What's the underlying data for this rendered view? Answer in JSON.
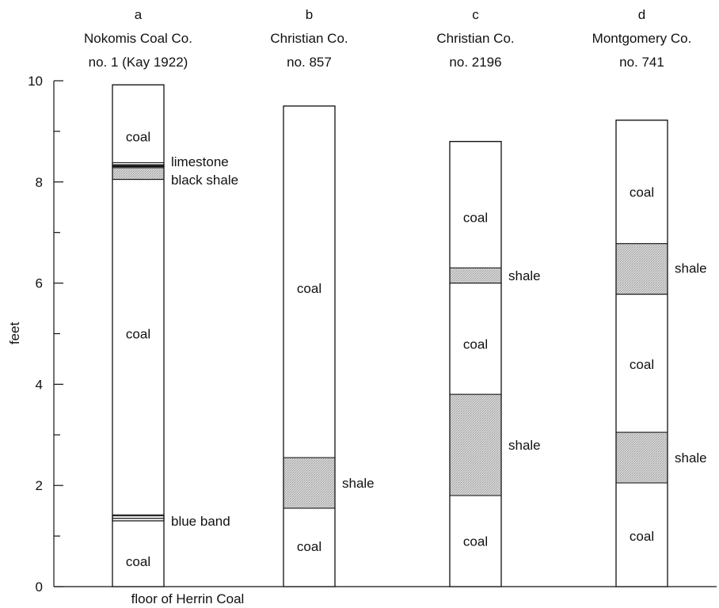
{
  "chart_data": {
    "type": "stratigraphic-columns",
    "ylabel": "feet",
    "ylim": [
      0,
      10
    ],
    "yticks": [
      0,
      2,
      4,
      6,
      8,
      10
    ],
    "x_annotation": "floor of Herrin Coal",
    "colors": {
      "coal": "#ffffff",
      "shale": "#d2d2d2",
      "line": "#111111"
    },
    "columns": [
      {
        "letter": "a",
        "title_line1": "Nokomis Coal Co.",
        "title_line2": "no. 1 (Kay 1922)",
        "top": 9.92,
        "layers": [
          {
            "kind": "coal",
            "bottom": 8.38,
            "top": 9.92
          },
          {
            "kind": "thin",
            "bottom": 8.3,
            "top": 8.34
          },
          {
            "kind": "shale",
            "bottom": 8.05,
            "top": 8.28
          },
          {
            "kind": "coal",
            "bottom": 1.42,
            "top": 8.05
          },
          {
            "kind": "thin",
            "bottom": 1.3,
            "top": 1.4
          },
          {
            "kind": "coal",
            "bottom": 0,
            "top": 1.3
          }
        ],
        "labels": [
          {
            "text": "coal",
            "y": 8.9,
            "side": "inside"
          },
          {
            "text": "limestone",
            "y": 8.4,
            "side": "right"
          },
          {
            "text": "black shale",
            "y": 8.04,
            "side": "right"
          },
          {
            "text": "coal",
            "y": 5.0,
            "side": "inside"
          },
          {
            "text": "blue band",
            "y": 1.3,
            "side": "right"
          },
          {
            "text": "coal",
            "y": 0.5,
            "side": "inside"
          }
        ]
      },
      {
        "letter": "b",
        "title_line1": "Christian Co.",
        "title_line2": "no. 857",
        "top": 9.5,
        "layers": [
          {
            "kind": "coal",
            "bottom": 2.55,
            "top": 9.5
          },
          {
            "kind": "shale",
            "bottom": 1.55,
            "top": 2.55
          },
          {
            "kind": "coal",
            "bottom": 0,
            "top": 1.55
          }
        ],
        "labels": [
          {
            "text": "coal",
            "y": 5.9,
            "side": "inside"
          },
          {
            "text": "shale",
            "y": 2.05,
            "side": "right"
          },
          {
            "text": "coal",
            "y": 0.8,
            "side": "inside"
          }
        ]
      },
      {
        "letter": "c",
        "title_line1": "Christian Co.",
        "title_line2": "no. 2196",
        "top": 8.8,
        "layers": [
          {
            "kind": "coal",
            "bottom": 6.3,
            "top": 8.8
          },
          {
            "kind": "shale",
            "bottom": 6.0,
            "top": 6.3
          },
          {
            "kind": "coal",
            "bottom": 3.8,
            "top": 6.0
          },
          {
            "kind": "shale",
            "bottom": 1.8,
            "top": 3.8
          },
          {
            "kind": "coal",
            "bottom": 0,
            "top": 1.8
          }
        ],
        "labels": [
          {
            "text": "coal",
            "y": 7.3,
            "side": "inside"
          },
          {
            "text": "shale",
            "y": 6.15,
            "side": "right"
          },
          {
            "text": "coal",
            "y": 4.8,
            "side": "inside"
          },
          {
            "text": "shale",
            "y": 2.8,
            "side": "right"
          },
          {
            "text": "coal",
            "y": 0.9,
            "side": "inside"
          }
        ]
      },
      {
        "letter": "d",
        "title_line1": "Montgomery Co.",
        "title_line2": "no. 741",
        "top": 9.22,
        "layers": [
          {
            "kind": "coal",
            "bottom": 6.78,
            "top": 9.22
          },
          {
            "kind": "shale",
            "bottom": 5.78,
            "top": 6.78
          },
          {
            "kind": "coal",
            "bottom": 3.05,
            "top": 5.78
          },
          {
            "kind": "shale",
            "bottom": 2.05,
            "top": 3.05
          },
          {
            "kind": "coal",
            "bottom": 0,
            "top": 2.05
          }
        ],
        "labels": [
          {
            "text": "coal",
            "y": 7.8,
            "side": "inside"
          },
          {
            "text": "shale",
            "y": 6.3,
            "side": "right"
          },
          {
            "text": "coal",
            "y": 4.4,
            "side": "inside"
          },
          {
            "text": "shale",
            "y": 2.55,
            "side": "right"
          },
          {
            "text": "coal",
            "y": 1.0,
            "side": "inside"
          }
        ]
      }
    ]
  }
}
